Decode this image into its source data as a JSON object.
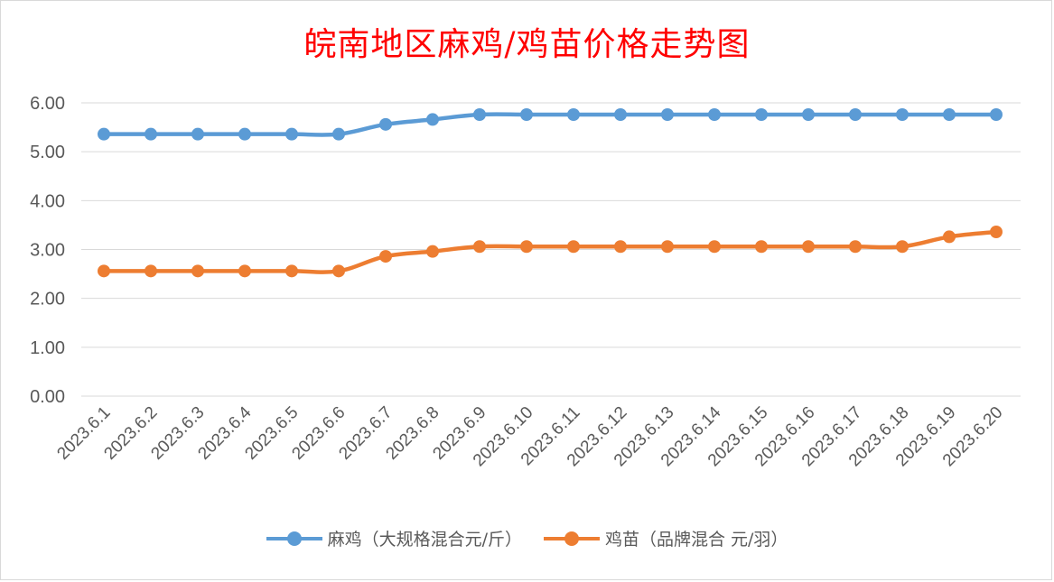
{
  "chart_data": {
    "type": "line",
    "title": "皖南地区麻鸡/鸡苗价格走势图",
    "categories": [
      "2023.6.1",
      "2023.6.2",
      "2023.6.3",
      "2023.6.4",
      "2023.6.5",
      "2023.6.6",
      "2023.6.7",
      "2023.6.8",
      "2023.6.9",
      "2023.6.10",
      "2023.6.11",
      "2023.6.12",
      "2023.6.13",
      "2023.6.14",
      "2023.6.15",
      "2023.6.16",
      "2023.6.17",
      "2023.6.18",
      "2023.6.19",
      "2023.6.20"
    ],
    "series": [
      {
        "name": "麻鸡（大规格混合元/斤）",
        "color": "#5b9bd5",
        "values": [
          5.36,
          5.36,
          5.36,
          5.36,
          5.36,
          5.36,
          5.56,
          5.66,
          5.76,
          5.76,
          5.76,
          5.76,
          5.76,
          5.76,
          5.76,
          5.76,
          5.76,
          5.76,
          5.76,
          5.76
        ]
      },
      {
        "name": "鸡苗（品牌混合 元/羽）",
        "color": "#ed7d31",
        "values": [
          2.56,
          2.56,
          2.56,
          2.56,
          2.56,
          2.56,
          2.86,
          2.96,
          3.06,
          3.06,
          3.06,
          3.06,
          3.06,
          3.06,
          3.06,
          3.06,
          3.06,
          3.06,
          3.26,
          3.36
        ]
      }
    ],
    "y_ticks": [
      "0.00",
      "1.00",
      "2.00",
      "3.00",
      "4.00",
      "5.00",
      "6.00"
    ],
    "ylim": [
      0,
      6
    ],
    "grid": true,
    "legend_position": "bottom"
  }
}
